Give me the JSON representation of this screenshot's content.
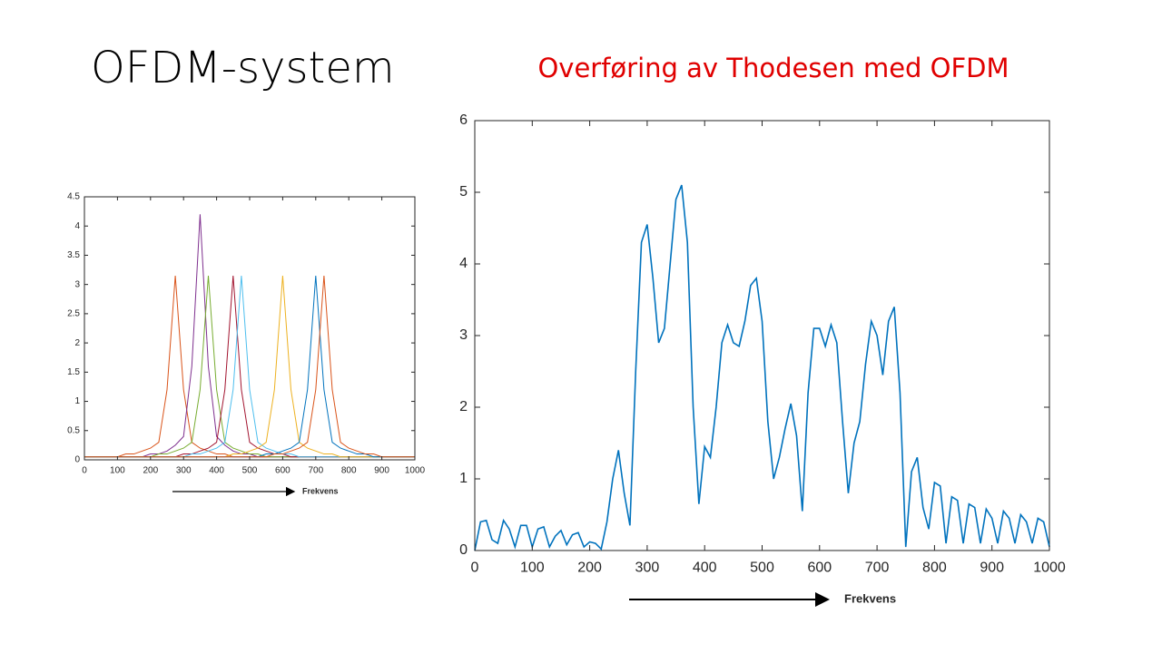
{
  "title": "OFDM-system",
  "subtitle": "Overføring av Thodesen med OFDM",
  "chart_data": [
    {
      "type": "line",
      "annotation": "Frekvens",
      "x": [
        0,
        25,
        50,
        75,
        100,
        125,
        150,
        175,
        200,
        225,
        250,
        275,
        300,
        325,
        350,
        375,
        400,
        425,
        450,
        475,
        500,
        525,
        550,
        575,
        600,
        625,
        650,
        675,
        700,
        725,
        750,
        775,
        800,
        825,
        850,
        875,
        900,
        925,
        950,
        975,
        1000
      ],
      "xlim": [
        0,
        1000
      ],
      "ylim": [
        0,
        4.5
      ],
      "xticks": [
        0,
        100,
        200,
        300,
        400,
        500,
        600,
        700,
        800,
        900,
        1000
      ],
      "yticks": [
        0,
        0.5,
        1,
        1.5,
        2,
        2.5,
        3,
        3.5,
        4,
        4.5
      ],
      "series": [
        {
          "color": "#d95319",
          "values": [
            0.05,
            0.05,
            0.05,
            0.05,
            0.05,
            0.1,
            0.1,
            0.15,
            0.2,
            0.3,
            1.2,
            3.15,
            1.2,
            0.3,
            0.2,
            0.15,
            0.1,
            0.1,
            0.05,
            0.05,
            0.05,
            0.05,
            0.05,
            0.05,
            0.05,
            0.05,
            0.05,
            0.05,
            0.05,
            0.05,
            0.05,
            0.05,
            0.05,
            0.05,
            0.05,
            0.05,
            0.05,
            0.05,
            0.05,
            0.05,
            0.05
          ]
        },
        {
          "color": "#7e2f8e",
          "values": [
            0.05,
            0.05,
            0.05,
            0.05,
            0.05,
            0.05,
            0.05,
            0.05,
            0.1,
            0.1,
            0.15,
            0.25,
            0.4,
            1.6,
            4.2,
            1.6,
            0.4,
            0.25,
            0.15,
            0.1,
            0.1,
            0.05,
            0.05,
            0.05,
            0.05,
            0.05,
            0.05,
            0.05,
            0.05,
            0.05,
            0.05,
            0.05,
            0.05,
            0.05,
            0.05,
            0.05,
            0.05,
            0.05,
            0.05,
            0.05,
            0.05
          ]
        },
        {
          "color": "#77ac30",
          "values": [
            0.05,
            0.05,
            0.05,
            0.05,
            0.05,
            0.05,
            0.05,
            0.05,
            0.05,
            0.1,
            0.1,
            0.15,
            0.2,
            0.3,
            1.2,
            3.15,
            1.2,
            0.3,
            0.2,
            0.15,
            0.1,
            0.1,
            0.05,
            0.05,
            0.05,
            0.05,
            0.05,
            0.05,
            0.05,
            0.05,
            0.05,
            0.05,
            0.05,
            0.05,
            0.05,
            0.05,
            0.05,
            0.05,
            0.05,
            0.05,
            0.05
          ]
        },
        {
          "color": "#a2142f",
          "values": [
            0.05,
            0.05,
            0.05,
            0.05,
            0.05,
            0.05,
            0.05,
            0.05,
            0.05,
            0.05,
            0.05,
            0.05,
            0.1,
            0.1,
            0.15,
            0.2,
            0.3,
            1.2,
            3.15,
            1.2,
            0.3,
            0.2,
            0.15,
            0.1,
            0.1,
            0.05,
            0.05,
            0.05,
            0.05,
            0.05,
            0.05,
            0.05,
            0.05,
            0.05,
            0.05,
            0.05,
            0.05,
            0.05,
            0.05,
            0.05,
            0.05
          ]
        },
        {
          "color": "#4dbeee",
          "values": [
            0.05,
            0.05,
            0.05,
            0.05,
            0.05,
            0.05,
            0.05,
            0.05,
            0.05,
            0.05,
            0.05,
            0.05,
            0.05,
            0.1,
            0.1,
            0.15,
            0.2,
            0.3,
            1.2,
            3.15,
            1.2,
            0.3,
            0.2,
            0.15,
            0.1,
            0.1,
            0.05,
            0.05,
            0.05,
            0.05,
            0.05,
            0.05,
            0.05,
            0.05,
            0.05,
            0.05,
            0.05,
            0.05,
            0.05,
            0.05,
            0.05
          ]
        },
        {
          "color": "#edb120",
          "values": [
            0.05,
            0.05,
            0.05,
            0.05,
            0.05,
            0.05,
            0.05,
            0.05,
            0.05,
            0.05,
            0.05,
            0.05,
            0.05,
            0.05,
            0.05,
            0.05,
            0.05,
            0.05,
            0.1,
            0.1,
            0.15,
            0.2,
            0.3,
            1.2,
            3.15,
            1.2,
            0.3,
            0.2,
            0.15,
            0.1,
            0.1,
            0.05,
            0.05,
            0.05,
            0.05,
            0.05,
            0.05,
            0.05,
            0.05,
            0.05,
            0.05
          ]
        },
        {
          "color": "#0072bd",
          "values": [
            0.05,
            0.05,
            0.05,
            0.05,
            0.05,
            0.05,
            0.05,
            0.05,
            0.05,
            0.05,
            0.05,
            0.05,
            0.05,
            0.05,
            0.05,
            0.05,
            0.05,
            0.05,
            0.05,
            0.05,
            0.05,
            0.05,
            0.1,
            0.1,
            0.15,
            0.2,
            0.3,
            1.2,
            3.15,
            1.2,
            0.3,
            0.2,
            0.15,
            0.1,
            0.1,
            0.05,
            0.05,
            0.05,
            0.05,
            0.05,
            0.05
          ]
        },
        {
          "color": "#d95319",
          "values": [
            0.05,
            0.05,
            0.05,
            0.05,
            0.05,
            0.05,
            0.05,
            0.05,
            0.05,
            0.05,
            0.05,
            0.05,
            0.05,
            0.05,
            0.05,
            0.05,
            0.05,
            0.05,
            0.05,
            0.05,
            0.05,
            0.05,
            0.05,
            0.1,
            0.1,
            0.15,
            0.2,
            0.3,
            1.2,
            3.15,
            1.2,
            0.3,
            0.2,
            0.15,
            0.1,
            0.1,
            0.05,
            0.05,
            0.05,
            0.05,
            0.05
          ]
        }
      ]
    },
    {
      "type": "line",
      "annotation": "Frekvens",
      "color": "#0072bd",
      "x": [
        0,
        10,
        20,
        30,
        40,
        50,
        60,
        70,
        80,
        90,
        100,
        110,
        120,
        130,
        140,
        150,
        160,
        170,
        180,
        190,
        200,
        210,
        220,
        230,
        240,
        250,
        260,
        270,
        280,
        290,
        300,
        310,
        320,
        330,
        340,
        350,
        360,
        370,
        380,
        390,
        400,
        410,
        420,
        430,
        440,
        450,
        460,
        470,
        480,
        490,
        500,
        510,
        520,
        530,
        540,
        550,
        560,
        570,
        580,
        590,
        600,
        610,
        620,
        630,
        640,
        650,
        660,
        670,
        680,
        690,
        700,
        710,
        720,
        730,
        740,
        750,
        760,
        770,
        780,
        790,
        800,
        810,
        820,
        830,
        840,
        850,
        860,
        870,
        880,
        890,
        900,
        910,
        920,
        930,
        940,
        950,
        960,
        970,
        980,
        990,
        1000
      ],
      "values": [
        0,
        0.4,
        0.42,
        0.15,
        0.1,
        0.42,
        0.3,
        0.05,
        0.35,
        0.35,
        0.05,
        0.3,
        0.33,
        0.05,
        0.2,
        0.28,
        0.08,
        0.22,
        0.25,
        0.05,
        0.12,
        0.1,
        0.02,
        0.4,
        1.0,
        1.4,
        0.8,
        0.35,
        2.5,
        4.3,
        4.55,
        3.8,
        2.9,
        3.1,
        4.0,
        4.9,
        5.1,
        4.3,
        2.0,
        0.65,
        1.45,
        1.3,
        2.0,
        2.9,
        3.15,
        2.9,
        2.85,
        3.2,
        3.7,
        3.8,
        3.2,
        1.8,
        1.0,
        1.3,
        1.7,
        2.05,
        1.6,
        0.55,
        2.2,
        3.1,
        3.1,
        2.85,
        3.15,
        2.9,
        1.8,
        0.8,
        1.5,
        1.8,
        2.6,
        3.2,
        3.0,
        2.45,
        3.2,
        3.4,
        2.2,
        0.05,
        1.1,
        1.3,
        0.6,
        0.3,
        0.95,
        0.9,
        0.1,
        0.75,
        0.7,
        0.1,
        0.65,
        0.6,
        0.1,
        0.58,
        0.45,
        0.1,
        0.55,
        0.45,
        0.1,
        0.5,
        0.4,
        0.1,
        0.45,
        0.4,
        0.05
      ],
      "xlim": [
        0,
        1000
      ],
      "ylim": [
        0,
        6
      ],
      "xticks": [
        0,
        100,
        200,
        300,
        400,
        500,
        600,
        700,
        800,
        900,
        1000
      ],
      "yticks": [
        0,
        1,
        2,
        3,
        4,
        5,
        6
      ]
    }
  ]
}
